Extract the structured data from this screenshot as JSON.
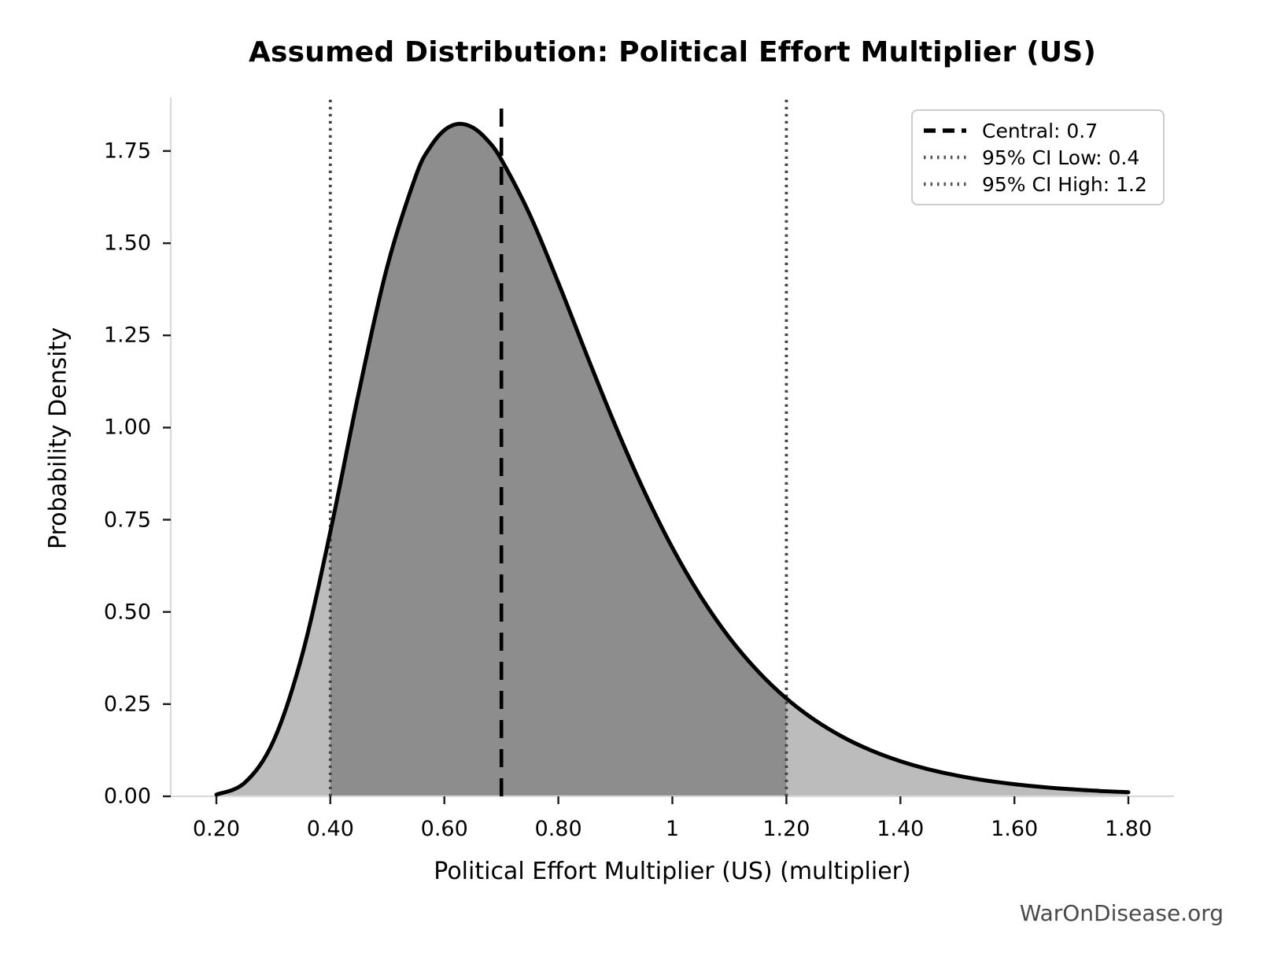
{
  "page": {
    "watermark": "WarOnDisease.org"
  },
  "chart_data": {
    "type": "area",
    "title": "Assumed Distribution: Political Effort Multiplier (US)",
    "xlabel": "Political Effort Multiplier (US) (multiplier)",
    "ylabel": "Probability Density",
    "xlim": [
      0.12,
      1.88
    ],
    "ylim": [
      0,
      1.895
    ],
    "grid": false,
    "legend_position": "upper right",
    "x_ticks": [
      {
        "value": 0.2,
        "label": "0.20"
      },
      {
        "value": 0.4,
        "label": "0.40"
      },
      {
        "value": 0.6,
        "label": "0.60"
      },
      {
        "value": 0.8,
        "label": "0.80"
      },
      {
        "value": 1.0,
        "label": "1"
      },
      {
        "value": 1.2,
        "label": "1.20"
      },
      {
        "value": 1.4,
        "label": "1.40"
      },
      {
        "value": 1.6,
        "label": "1.60"
      },
      {
        "value": 1.8,
        "label": "1.80"
      }
    ],
    "y_ticks": [
      {
        "value": 0.0,
        "label": "0.00"
      },
      {
        "value": 0.25,
        "label": "0.25"
      },
      {
        "value": 0.5,
        "label": "0.50"
      },
      {
        "value": 0.75,
        "label": "0.75"
      },
      {
        "value": 1.0,
        "label": "1.00"
      },
      {
        "value": 1.25,
        "label": "1.25"
      },
      {
        "value": 1.5,
        "label": "1.50"
      },
      {
        "value": 1.75,
        "label": "1.75"
      }
    ],
    "distribution": {
      "family": "lognormal",
      "central": 0.7,
      "ci95_low": 0.4,
      "ci95_high": 1.2,
      "peak_x": 0.63,
      "peak_density": 1.8,
      "x_range": [
        0.2,
        1.8
      ]
    },
    "markers": {
      "central": {
        "value": 0.7,
        "label": "Central: 0.7",
        "style": "dashed",
        "color": "#000000"
      },
      "ci_low": {
        "value": 0.4,
        "label": "95% CI Low: 0.4",
        "style": "dotted",
        "color": "#454545"
      },
      "ci_high": {
        "value": 1.2,
        "label": "95% CI High: 1.2",
        "style": "dotted",
        "color": "#454545"
      }
    },
    "shaded_ci_region": [
      0.4,
      1.2
    ],
    "curve": [
      [
        0.2,
        0.0045
      ],
      [
        0.25,
        0.0372
      ],
      [
        0.3,
        0.1493
      ],
      [
        0.35,
        0.3803
      ],
      [
        0.4,
        0.7176
      ],
      [
        0.45,
        1.0963
      ],
      [
        0.5,
        1.4378
      ],
      [
        0.55,
        1.6829
      ],
      [
        0.575,
        1.7603
      ],
      [
        0.6,
        1.8066
      ],
      [
        0.625,
        1.8237
      ],
      [
        0.65,
        1.8136
      ],
      [
        0.675,
        1.7802
      ],
      [
        0.7,
        1.727
      ],
      [
        0.75,
        1.5771
      ],
      [
        0.8,
        1.3924
      ],
      [
        0.85,
        1.1962
      ],
      [
        0.9,
        1.0051
      ],
      [
        0.95,
        0.8293
      ],
      [
        1.0,
        0.6742
      ],
      [
        1.05,
        0.5413
      ],
      [
        1.1,
        0.4302
      ],
      [
        1.15,
        0.3391
      ],
      [
        1.2,
        0.2654
      ],
      [
        1.25,
        0.2066
      ],
      [
        1.3,
        0.16
      ],
      [
        1.35,
        0.1236
      ],
      [
        1.4,
        0.0951
      ],
      [
        1.45,
        0.073
      ],
      [
        1.5,
        0.0561
      ],
      [
        1.55,
        0.0429
      ],
      [
        1.6,
        0.0328
      ],
      [
        1.65,
        0.0251
      ],
      [
        1.7,
        0.0191
      ],
      [
        1.75,
        0.0146
      ],
      [
        1.8,
        0.0112
      ]
    ],
    "colors": {
      "curve": "#000000",
      "fill": "#bcbcbc",
      "fill_ci": "#8d8d8d",
      "spine": "#d9d9d9",
      "tick": "#1c1c1c",
      "text": "#000000"
    }
  }
}
